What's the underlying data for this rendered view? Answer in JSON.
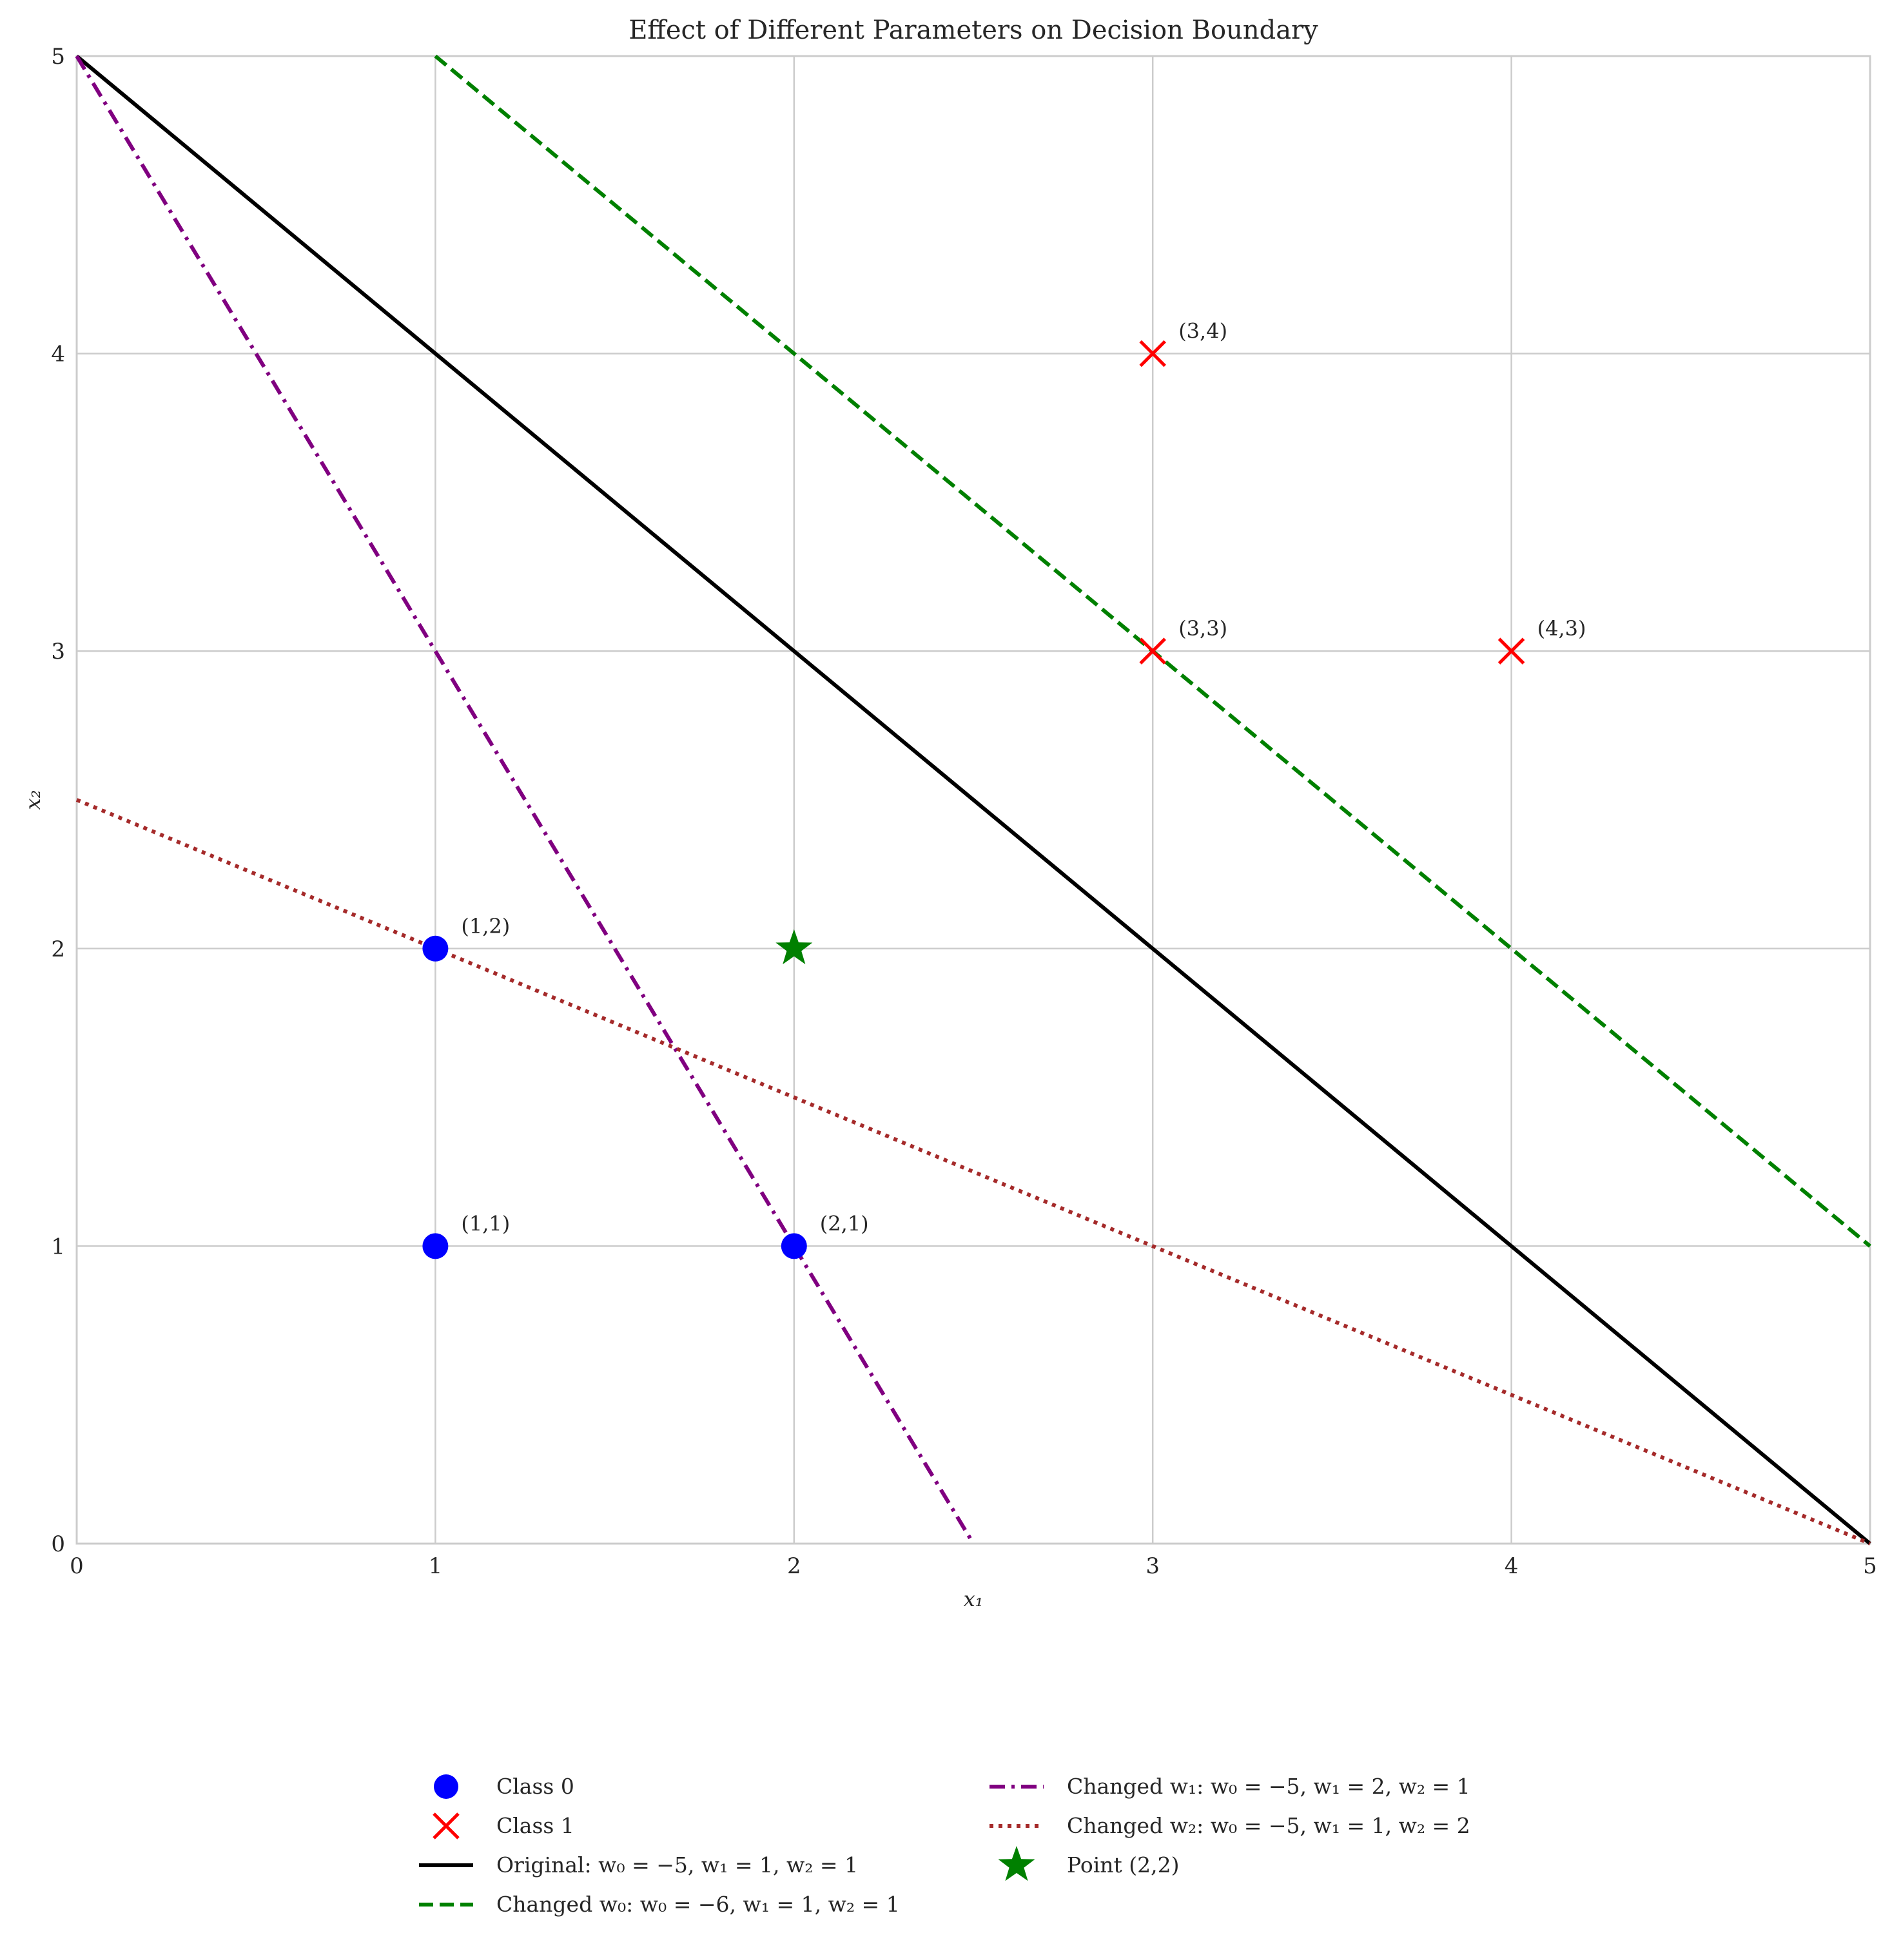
{
  "chart_data": {
    "type": "scatter",
    "title": "Effect of Different Parameters on Decision Boundary",
    "xlabel": "x₁",
    "ylabel": "x₂",
    "xlim": [
      0,
      5
    ],
    "ylim": [
      0,
      5
    ],
    "xticks": [
      "0",
      "1",
      "2",
      "3",
      "4",
      "5"
    ],
    "yticks": [
      "0",
      "1",
      "2",
      "3",
      "4",
      "5"
    ],
    "grid": true,
    "legend_position": "below plot, two columns",
    "series": [
      {
        "name": "Class 0",
        "kind": "scatter",
        "marker": "circle",
        "color": "#0000ff",
        "points": [
          [
            1,
            1
          ],
          [
            2,
            1
          ],
          [
            1,
            2
          ]
        ]
      },
      {
        "name": "Class 1",
        "kind": "scatter",
        "marker": "x",
        "color": "#ff0000",
        "points": [
          [
            3,
            3
          ],
          [
            4,
            3
          ],
          [
            3,
            4
          ]
        ]
      },
      {
        "name": "Original: w₀ = −5, w₁ = 1, w₂ = 1",
        "kind": "line",
        "style": "solid",
        "color": "#000000",
        "x": [
          0,
          5
        ],
        "y": [
          5,
          0
        ]
      },
      {
        "name": "Changed w₀: w₀ = −6, w₁ = 1, w₂ = 1",
        "kind": "line",
        "style": "dashed",
        "color": "#008000",
        "x": [
          1,
          5
        ],
        "y": [
          5,
          1
        ]
      },
      {
        "name": "Changed w₁: w₀ = −5, w₁ = 2, w₂ = 1",
        "kind": "line",
        "style": "dashdot",
        "color": "#800080",
        "x": [
          0,
          2.5
        ],
        "y": [
          5,
          0
        ]
      },
      {
        "name": "Changed w₂: w₀ = −5, w₁ = 1, w₂ = 2",
        "kind": "line",
        "style": "dotted",
        "color": "#a52a2a",
        "x": [
          0,
          5
        ],
        "y": [
          2.5,
          0
        ]
      },
      {
        "name": "Point (2,2)",
        "kind": "scatter",
        "marker": "star",
        "color": "#008000",
        "points": [
          [
            2,
            2
          ]
        ]
      }
    ],
    "annotations": [
      {
        "text": "(1,1)",
        "x": 1,
        "y": 1
      },
      {
        "text": "(2,1)",
        "x": 2,
        "y": 1
      },
      {
        "text": "(1,2)",
        "x": 1,
        "y": 2
      },
      {
        "text": "(3,3)",
        "x": 3,
        "y": 3
      },
      {
        "text": "(4,3)",
        "x": 4,
        "y": 3
      },
      {
        "text": "(3,4)",
        "x": 3,
        "y": 4
      }
    ]
  }
}
